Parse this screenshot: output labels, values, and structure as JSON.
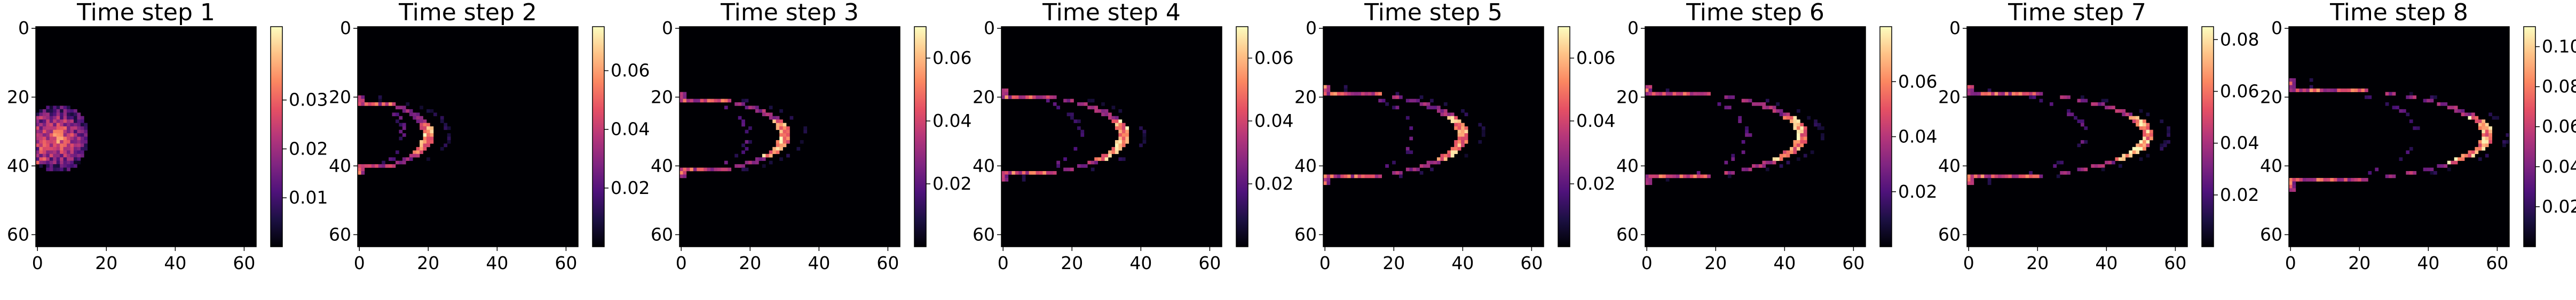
{
  "chart_data": [
    {
      "type": "heatmap",
      "title": "Time step 1",
      "colormap": "magma",
      "xlim": [
        0,
        63
      ],
      "ylim": [
        63,
        0
      ],
      "xticks": [
        0,
        20,
        40,
        60
      ],
      "yticks": [
        0,
        20,
        40,
        60
      ],
      "colorbar": {
        "min": 0.0,
        "max": 0.045,
        "ticks": [
          0.01,
          0.02,
          0.03
        ]
      },
      "description": "bright blob at left edge x 0-15, y 22-42, faint wake to the right"
    },
    {
      "type": "heatmap",
      "title": "Time step 2",
      "colormap": "magma",
      "xlim": [
        0,
        63
      ],
      "ylim": [
        63,
        0
      ],
      "xticks": [
        0,
        20,
        40,
        60
      ],
      "yticks": [
        0,
        20,
        40,
        60
      ],
      "colorbar": {
        "min": 0.0,
        "max": 0.075,
        "ticks": [
          0.02,
          0.04,
          0.06
        ]
      },
      "description": "thin ring from x 0-26, y 20-40"
    },
    {
      "type": "heatmap",
      "title": "Time step 3",
      "colormap": "magma",
      "xlim": [
        0,
        63
      ],
      "ylim": [
        63,
        0
      ],
      "xticks": [
        0,
        20,
        40,
        60
      ],
      "yticks": [
        0,
        20,
        40,
        60
      ],
      "colorbar": {
        "min": 0.0,
        "max": 0.07,
        "ticks": [
          0.02,
          0.04,
          0.06
        ]
      },
      "description": "crescent front near x 28-32"
    },
    {
      "type": "heatmap",
      "title": "Time step 4",
      "colormap": "magma",
      "xlim": [
        0,
        63
      ],
      "ylim": [
        63,
        0
      ],
      "xticks": [
        0,
        20,
        40,
        60
      ],
      "yticks": [
        0,
        20,
        40,
        60
      ],
      "colorbar": {
        "min": 0.0,
        "max": 0.07,
        "ticks": [
          0.02,
          0.04,
          0.06
        ]
      },
      "description": "crescent front near x 32-37"
    },
    {
      "type": "heatmap",
      "title": "Time step 5",
      "colormap": "magma",
      "xlim": [
        0,
        63
      ],
      "ylim": [
        63,
        0
      ],
      "xticks": [
        0,
        20,
        40,
        60
      ],
      "yticks": [
        0,
        20,
        40,
        60
      ],
      "colorbar": {
        "min": 0.0,
        "max": 0.07,
        "ticks": [
          0.02,
          0.04,
          0.06
        ]
      },
      "description": "crescent front near x 38-42"
    },
    {
      "type": "heatmap",
      "title": "Time step 6",
      "colormap": "magma",
      "xlim": [
        0,
        63
      ],
      "ylim": [
        63,
        0
      ],
      "xticks": [
        0,
        20,
        40,
        60
      ],
      "yticks": [
        0,
        20,
        40,
        60
      ],
      "colorbar": {
        "min": 0.0,
        "max": 0.08,
        "ticks": [
          0.02,
          0.04,
          0.06
        ]
      },
      "description": "crescent front near x 43-47"
    },
    {
      "type": "heatmap",
      "title": "Time step 7",
      "colormap": "magma",
      "xlim": [
        0,
        63
      ],
      "ylim": [
        63,
        0
      ],
      "xticks": [
        0,
        20,
        40,
        60
      ],
      "yticks": [
        0,
        20,
        40,
        60
      ],
      "colorbar": {
        "min": 0.0,
        "max": 0.085,
        "ticks": [
          0.02,
          0.04,
          0.06,
          0.08
        ]
      },
      "description": "crescent front near x 50-55"
    },
    {
      "type": "heatmap",
      "title": "Time step 8",
      "colormap": "magma",
      "xlim": [
        0,
        63
      ],
      "ylim": [
        63,
        0
      ],
      "xticks": [
        0,
        20,
        40,
        60
      ],
      "yticks": [
        0,
        20,
        40,
        60
      ],
      "colorbar": {
        "min": 0.0,
        "max": 0.11,
        "ticks": [
          0.02,
          0.04,
          0.06,
          0.08,
          0.1
        ]
      },
      "description": "crescent front near x 55-62"
    }
  ],
  "colors": {
    "colormap_stops": [
      "#000004",
      "#1c1044",
      "#4f127b",
      "#812581",
      "#b5367a",
      "#e55064",
      "#fb8761",
      "#fec287",
      "#fcfdbf"
    ]
  }
}
